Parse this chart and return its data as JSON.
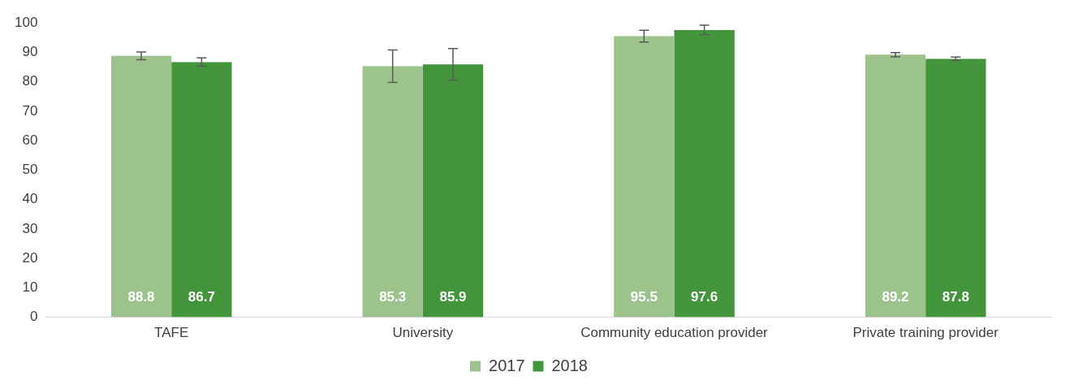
{
  "chart_data": {
    "type": "bar",
    "categories": [
      "TAFE",
      "University",
      "Community education provider",
      "Private training provider"
    ],
    "series": [
      {
        "name": "2017",
        "color": "#9dc38c",
        "values": [
          88.8,
          85.3,
          95.5,
          89.2
        ],
        "errors": [
          1.3,
          5.5,
          2.0,
          0.7
        ]
      },
      {
        "name": "2018",
        "color": "#43953b",
        "values": [
          86.7,
          85.9,
          97.6,
          87.8
        ],
        "errors": [
          1.4,
          5.4,
          1.6,
          0.6
        ]
      }
    ],
    "ylim": [
      0,
      100
    ],
    "yticks": [
      0,
      10,
      20,
      30,
      40,
      50,
      60,
      70,
      80,
      90,
      100
    ],
    "grid": false,
    "legend": "bottom",
    "data_labels": true
  }
}
